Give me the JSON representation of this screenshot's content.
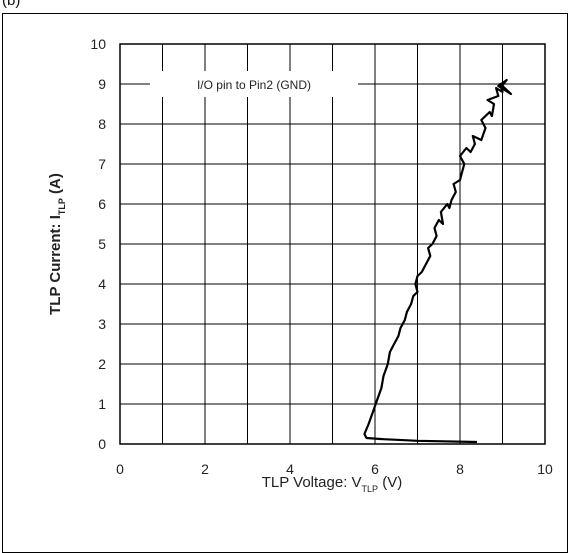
{
  "caption": "(b)",
  "chart_data": {
    "type": "line",
    "title": "",
    "annotation": "I/O pin to Pin2 (GND)",
    "xlabel": {
      "main": "TLP Voltage: V",
      "sub": "TLP",
      "unit": " (V)"
    },
    "ylabel": {
      "main": "TLP Current: I",
      "sub": "TLP",
      "unit": " (A)"
    },
    "xlim": [
      0,
      10
    ],
    "ylim": [
      0,
      10
    ],
    "x_ticks": [
      "0",
      "2",
      "4",
      "6",
      "8",
      "10"
    ],
    "y_ticks": [
      "0",
      "1",
      "2",
      "3",
      "4",
      "5",
      "6",
      "7",
      "8",
      "9",
      "10"
    ],
    "grid": true,
    "line_color": "#000000",
    "series": [
      {
        "x": [
          8.4,
          7.0,
          6.2,
          5.8,
          5.75,
          5.85,
          5.95,
          6.05,
          6.15,
          6.2,
          6.3,
          6.35,
          6.45,
          6.55,
          6.6,
          6.7,
          6.75,
          6.85,
          6.9,
          7.0,
          6.95,
          7.0,
          7.1,
          7.2,
          7.3,
          7.25,
          7.35,
          7.45,
          7.4,
          7.5,
          7.6,
          7.55,
          7.7,
          7.75,
          7.8,
          7.9,
          7.85,
          8.0,
          8.05,
          8.1,
          8.0,
          8.15,
          8.25,
          8.35,
          8.3,
          8.5,
          8.6,
          8.5,
          8.7,
          8.75,
          8.8,
          8.65,
          8.9,
          8.85,
          9.0,
          8.95,
          9.2,
          8.9,
          9.1,
          8.95
        ],
        "y": [
          0.05,
          0.08,
          0.12,
          0.15,
          0.25,
          0.5,
          0.8,
          1.1,
          1.4,
          1.7,
          2.0,
          2.3,
          2.5,
          2.7,
          2.9,
          3.1,
          3.3,
          3.5,
          3.7,
          3.8,
          4.0,
          4.2,
          4.3,
          4.5,
          4.7,
          4.9,
          5.0,
          5.2,
          5.4,
          5.6,
          5.5,
          5.8,
          6.0,
          5.9,
          6.1,
          6.3,
          6.5,
          6.6,
          6.8,
          7.0,
          7.2,
          7.4,
          7.3,
          7.5,
          7.7,
          7.6,
          7.9,
          8.1,
          8.3,
          8.2,
          8.5,
          8.6,
          8.7,
          8.9,
          8.8,
          9.0,
          8.75,
          8.95,
          9.1,
          8.9
        ]
      }
    ]
  }
}
